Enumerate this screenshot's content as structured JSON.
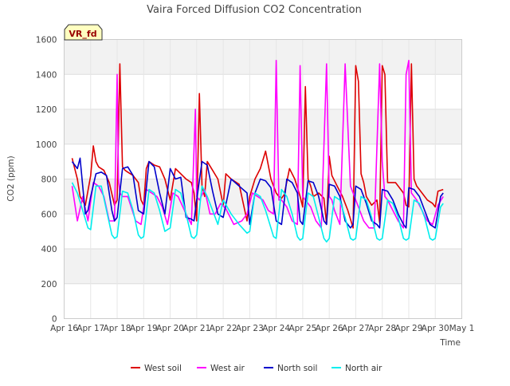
{
  "chart_data": {
    "type": "line",
    "title": "Vaira Forced Diffusion CO2 Concentration",
    "badge": "VR_fd",
    "xlabel": "Time",
    "ylabel": "CO2 (ppm)",
    "ylim": [
      0,
      1600
    ],
    "yticks": [
      0,
      200,
      400,
      600,
      800,
      1000,
      1200,
      1400,
      1600
    ],
    "xlim": [
      0,
      15
    ],
    "x_tick_labels": [
      "Apr 16",
      "Apr 17",
      "Apr 18",
      "Apr 19",
      "Apr 20",
      "Apr 21",
      "Apr 22",
      "Apr 23",
      "Apr 24",
      "Apr 25",
      "Apr 26",
      "Apr 27",
      "Apr 28",
      "Apr 29",
      "Apr 30",
      "May 1"
    ],
    "x_unit": "days since Apr 16",
    "grid": true,
    "legend_position": "bottom",
    "series": [
      {
        "name": "West soil",
        "color": "#dd0000",
        "x": [
          0.3,
          0.4,
          0.5,
          0.6,
          0.8,
          1.0,
          1.1,
          1.2,
          1.3,
          1.5,
          1.7,
          1.9,
          2.0,
          2.1,
          2.2,
          2.3,
          2.4,
          2.6,
          2.8,
          2.9,
          3.0,
          3.1,
          3.2,
          3.4,
          3.6,
          3.8,
          4.0,
          4.2,
          4.4,
          4.6,
          4.8,
          4.9,
          5.0,
          5.1,
          5.2,
          5.3,
          5.4,
          5.6,
          5.8,
          6.0,
          6.1,
          6.3,
          6.6,
          6.9,
          7.0,
          7.2,
          7.4,
          7.6,
          7.8,
          8.0,
          8.1,
          8.2,
          8.3,
          8.5,
          8.7,
          8.9,
          9.0,
          9.1,
          9.2,
          9.3,
          9.4,
          9.6,
          9.8,
          9.9,
          10.0,
          10.1,
          10.2,
          10.3,
          10.5,
          10.7,
          10.9,
          11.0,
          11.1,
          11.2,
          11.3,
          11.4,
          11.6,
          11.8,
          11.9,
          12.0,
          12.1,
          12.2,
          12.3,
          12.5,
          12.8,
          12.9,
          13.0,
          13.1,
          13.2,
          13.3,
          13.5,
          13.7,
          13.9,
          14.0,
          14.1,
          14.3
        ],
        "y": [
          920,
          860,
          800,
          700,
          650,
          820,
          990,
          900,
          870,
          850,
          780,
          650,
          680,
          1460,
          870,
          850,
          840,
          820,
          780,
          680,
          650,
          860,
          900,
          880,
          870,
          800,
          680,
          860,
          830,
          800,
          780,
          720,
          560,
          1290,
          760,
          700,
          900,
          850,
          800,
          650,
          830,
          800,
          770,
          560,
          700,
          800,
          860,
          960,
          800,
          720,
          700,
          690,
          710,
          860,
          800,
          700,
          640,
          1330,
          800,
          760,
          700,
          720,
          690,
          540,
          930,
          820,
          790,
          760,
          700,
          620,
          520,
          1450,
          1360,
          830,
          780,
          700,
          650,
          680,
          550,
          1450,
          1400,
          780,
          780,
          780,
          720,
          650,
          640,
          1460,
          800,
          760,
          720,
          680,
          660,
          640,
          730,
          740
        ],
        "values_note": ""
      },
      {
        "name": "West air",
        "color": "#ff00ff",
        "x": [
          0.3,
          0.5,
          0.7,
          0.9,
          1.1,
          1.3,
          1.5,
          1.7,
          1.9,
          2.0,
          2.05,
          2.1,
          2.2,
          2.4,
          2.7,
          2.9,
          3.1,
          3.3,
          3.5,
          3.7,
          3.9,
          4.1,
          4.3,
          4.6,
          4.8,
          4.95,
          5.0,
          5.1,
          5.3,
          5.5,
          5.7,
          5.9,
          6.1,
          6.4,
          6.7,
          6.9,
          7.1,
          7.3,
          7.5,
          7.7,
          7.9,
          8.0,
          8.1,
          8.2,
          8.4,
          8.6,
          8.8,
          8.9,
          8.95,
          9.0,
          9.1,
          9.3,
          9.5,
          9.7,
          9.9,
          10.0,
          10.1,
          10.2,
          10.4,
          10.6,
          10.8,
          10.9,
          11.0,
          11.1,
          11.3,
          11.5,
          11.7,
          11.9,
          12.0,
          12.1,
          12.2,
          12.4,
          12.6,
          12.8,
          12.9,
          13.0,
          13.1,
          13.3,
          13.5,
          13.7,
          13.9,
          14.1,
          14.3
        ],
        "y": [
          760,
          560,
          700,
          560,
          780,
          760,
          700,
          560,
          560,
          1400,
          800,
          720,
          700,
          700,
          560,
          540,
          740,
          720,
          700,
          640,
          540,
          720,
          700,
          600,
          540,
          1200,
          700,
          680,
          740,
          600,
          600,
          660,
          630,
          540,
          560,
          600,
          720,
          700,
          680,
          620,
          600,
          1480,
          680,
          680,
          640,
          560,
          540,
          1450,
          1100,
          700,
          680,
          640,
          560,
          520,
          1460,
          700,
          680,
          620,
          540,
          1460,
          760,
          720,
          680,
          640,
          560,
          520,
          520,
          1460,
          900,
          700,
          680,
          620,
          560,
          520,
          1400,
          1480,
          720,
          680,
          620,
          560,
          540,
          650,
          700
        ]
      },
      {
        "name": "North soil",
        "color": "#0000cc",
        "x": [
          0.3,
          0.4,
          0.5,
          0.6,
          0.8,
          0.9,
          1.0,
          1.2,
          1.4,
          1.6,
          1.8,
          1.9,
          2.0,
          2.2,
          2.4,
          2.6,
          2.8,
          3.0,
          3.2,
          3.4,
          3.6,
          3.8,
          4.0,
          4.2,
          4.4,
          4.6,
          4.8,
          4.9,
          5.0,
          5.2,
          5.4,
          5.6,
          5.8,
          6.0,
          6.3,
          6.6,
          6.9,
          7.0,
          7.2,
          7.4,
          7.6,
          7.8,
          8.0,
          8.2,
          8.4,
          8.6,
          8.8,
          8.9,
          9.0,
          9.2,
          9.4,
          9.6,
          9.8,
          9.9,
          10.0,
          10.2,
          10.4,
          10.6,
          10.8,
          10.9,
          11.0,
          11.2,
          11.4,
          11.6,
          11.8,
          11.9,
          12.0,
          12.2,
          12.4,
          12.6,
          12.8,
          12.9,
          13.0,
          13.2,
          13.4,
          13.6,
          13.8,
          14.0,
          14.2,
          14.3
        ],
        "y": [
          900,
          880,
          860,
          920,
          600,
          620,
          700,
          830,
          840,
          820,
          620,
          560,
          580,
          860,
          870,
          820,
          620,
          600,
          900,
          870,
          720,
          600,
          860,
          800,
          810,
          580,
          570,
          560,
          680,
          900,
          880,
          730,
          600,
          580,
          800,
          760,
          720,
          540,
          720,
          800,
          790,
          750,
          560,
          540,
          800,
          780,
          720,
          560,
          540,
          790,
          780,
          700,
          560,
          540,
          770,
          760,
          700,
          560,
          520,
          540,
          760,
          740,
          660,
          560,
          540,
          520,
          740,
          730,
          680,
          600,
          540,
          520,
          750,
          740,
          700,
          620,
          540,
          520,
          700,
          720
        ]
      },
      {
        "name": "North air",
        "color": "#00eeee",
        "x": [
          0.3,
          0.5,
          0.7,
          0.9,
          1.0,
          1.2,
          1.4,
          1.6,
          1.8,
          1.9,
          2.0,
          2.2,
          2.4,
          2.6,
          2.8,
          2.9,
          3.0,
          3.2,
          3.4,
          3.6,
          3.8,
          3.9,
          4.0,
          4.2,
          4.4,
          4.6,
          4.8,
          4.9,
          5.0,
          5.2,
          5.4,
          5.6,
          5.8,
          6.0,
          6.3,
          6.6,
          6.9,
          7.0,
          7.2,
          7.4,
          7.6,
          7.8,
          7.9,
          8.0,
          8.2,
          8.4,
          8.6,
          8.8,
          8.9,
          9.0,
          9.2,
          9.4,
          9.6,
          9.8,
          9.9,
          10.0,
          10.2,
          10.4,
          10.6,
          10.8,
          10.9,
          11.0,
          11.2,
          11.4,
          11.6,
          11.8,
          11.9,
          12.0,
          12.2,
          12.4,
          12.6,
          12.8,
          12.9,
          13.0,
          13.2,
          13.4,
          13.6,
          13.8,
          13.9,
          14.0,
          14.2,
          14.3
        ],
        "y": [
          780,
          720,
          620,
          520,
          510,
          760,
          760,
          620,
          480,
          460,
          470,
          730,
          720,
          620,
          480,
          460,
          470,
          740,
          720,
          620,
          500,
          510,
          520,
          740,
          720,
          600,
          470,
          460,
          480,
          760,
          700,
          620,
          540,
          680,
          600,
          540,
          490,
          500,
          720,
          700,
          620,
          520,
          470,
          460,
          740,
          700,
          600,
          470,
          450,
          460,
          720,
          700,
          580,
          460,
          440,
          460,
          700,
          680,
          580,
          460,
          450,
          460,
          700,
          680,
          580,
          460,
          450,
          460,
          680,
          660,
          580,
          460,
          450,
          460,
          680,
          660,
          580,
          460,
          450,
          460,
          640,
          660
        ]
      }
    ]
  }
}
